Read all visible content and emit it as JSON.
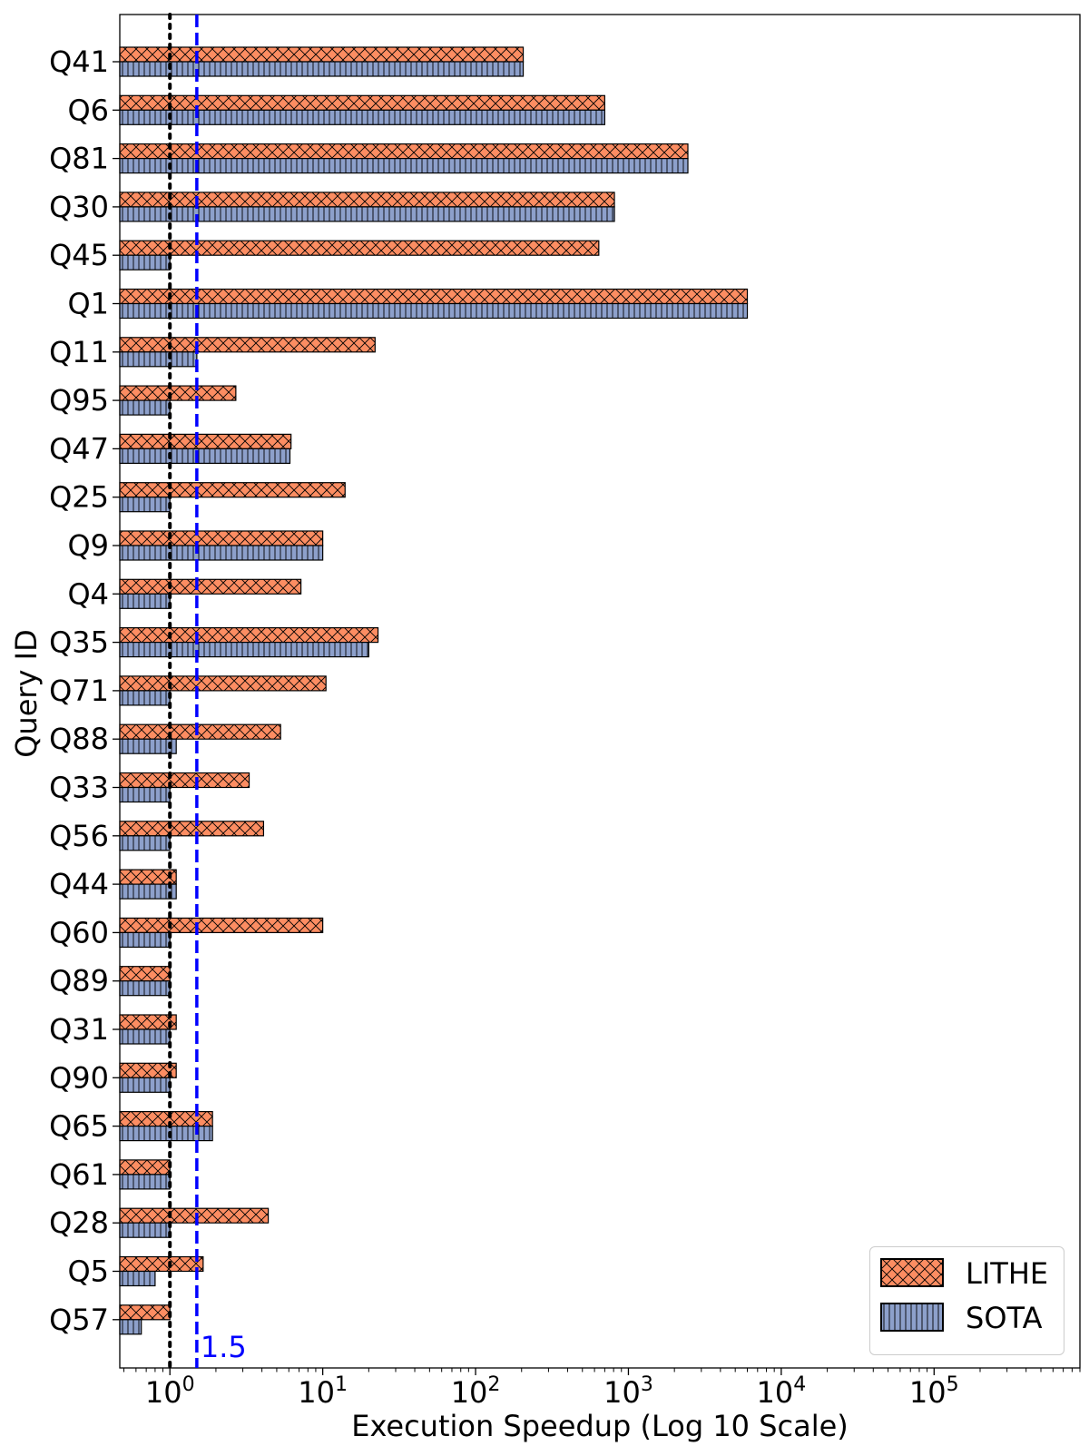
{
  "chart_data": {
    "type": "bar",
    "orientation": "horizontal",
    "xlabel": "Execution Speedup (Log 10 Scale)",
    "ylabel": "Query ID",
    "xscale": "log10",
    "xlim": [
      0.47,
      900000
    ],
    "x_ticks": [
      {
        "base": "10",
        "exp": "0",
        "value": 1
      },
      {
        "base": "10",
        "exp": "1",
        "value": 10
      },
      {
        "base": "10",
        "exp": "2",
        "value": 100
      },
      {
        "base": "10",
        "exp": "3",
        "value": 1000
      },
      {
        "base": "10",
        "exp": "4",
        "value": 10000
      },
      {
        "base": "10",
        "exp": "5",
        "value": 100000
      }
    ],
    "grid": false,
    "legend_position": "bottom-right",
    "categories": [
      "Q41",
      "Q6",
      "Q81",
      "Q30",
      "Q45",
      "Q1",
      "Q11",
      "Q95",
      "Q47",
      "Q25",
      "Q9",
      "Q4",
      "Q35",
      "Q71",
      "Q88",
      "Q33",
      "Q56",
      "Q44",
      "Q60",
      "Q89",
      "Q31",
      "Q90",
      "Q65",
      "Q61",
      "Q28",
      "Q5",
      "Q57"
    ],
    "series": [
      {
        "name": "LITHE",
        "color": "#fc8d62",
        "hatch": "cross",
        "values": [
          205,
          700,
          2450,
          810,
          640,
          6000,
          22,
          2.7,
          6.2,
          14,
          10,
          7.2,
          23,
          10.5,
          5.3,
          3.3,
          4.1,
          1.1,
          10,
          1.0,
          1.1,
          1.1,
          1.9,
          1.0,
          4.4,
          1.65,
          1.0
        ]
      },
      {
        "name": "SOTA",
        "color": "#8da0cb",
        "hatch": "vertical",
        "values": [
          205,
          700,
          2450,
          810,
          1.0,
          6000,
          1.5,
          1.0,
          6.1,
          1.0,
          10,
          1.0,
          20,
          1.0,
          1.1,
          1.0,
          1.0,
          1.1,
          1.0,
          1.0,
          1.0,
          1.0,
          1.9,
          1.0,
          1.0,
          0.8,
          0.65
        ]
      }
    ],
    "reference_lines": [
      {
        "value": 1,
        "style": "dotted",
        "color": "#000000",
        "label": ""
      },
      {
        "value": 1.5,
        "style": "dashed",
        "color": "#0000ff",
        "label": "1.5"
      }
    ]
  }
}
